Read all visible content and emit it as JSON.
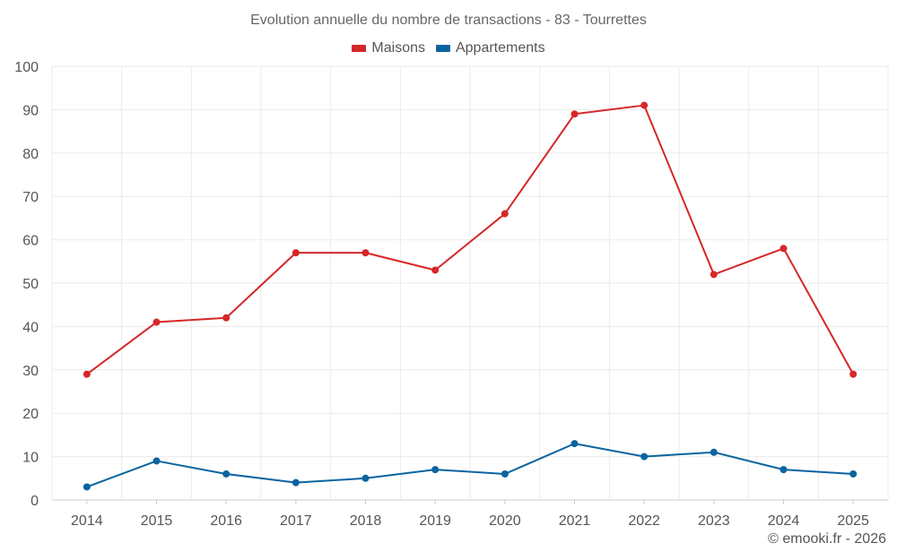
{
  "title": "Evolution annuelle du nombre de transactions - 83 - Tourrettes",
  "credit": "© emooki.fr - 2026",
  "colors": {
    "maisons": "#d62728",
    "appartements": "#0a64a0",
    "grid": "#ebebeb",
    "axis_text": "#555555"
  },
  "legend": [
    {
      "label": "Maisons",
      "color": "#d62728"
    },
    {
      "label": "Appartements",
      "color": "#0a64a0"
    }
  ],
  "chart_data": {
    "type": "line",
    "title": "Evolution annuelle du nombre de transactions - 83 - Tourrettes",
    "xlabel": "",
    "ylabel": "",
    "x": [
      "2014",
      "2015",
      "2016",
      "2017",
      "2018",
      "2019",
      "2020",
      "2021",
      "2022",
      "2023",
      "2024",
      "2025"
    ],
    "ylim": [
      0,
      100
    ],
    "yticks": [
      0,
      10,
      20,
      30,
      40,
      50,
      60,
      70,
      80,
      90,
      100
    ],
    "grid": true,
    "legend_position": "top-center",
    "series": [
      {
        "name": "Maisons",
        "color": "#d62728",
        "values": [
          29,
          41,
          42,
          57,
          57,
          53,
          66,
          89,
          91,
          52,
          58,
          29
        ]
      },
      {
        "name": "Appartements",
        "color": "#0a64a0",
        "values": [
          3,
          9,
          6,
          4,
          5,
          7,
          6,
          13,
          10,
          11,
          7,
          6
        ]
      }
    ]
  }
}
